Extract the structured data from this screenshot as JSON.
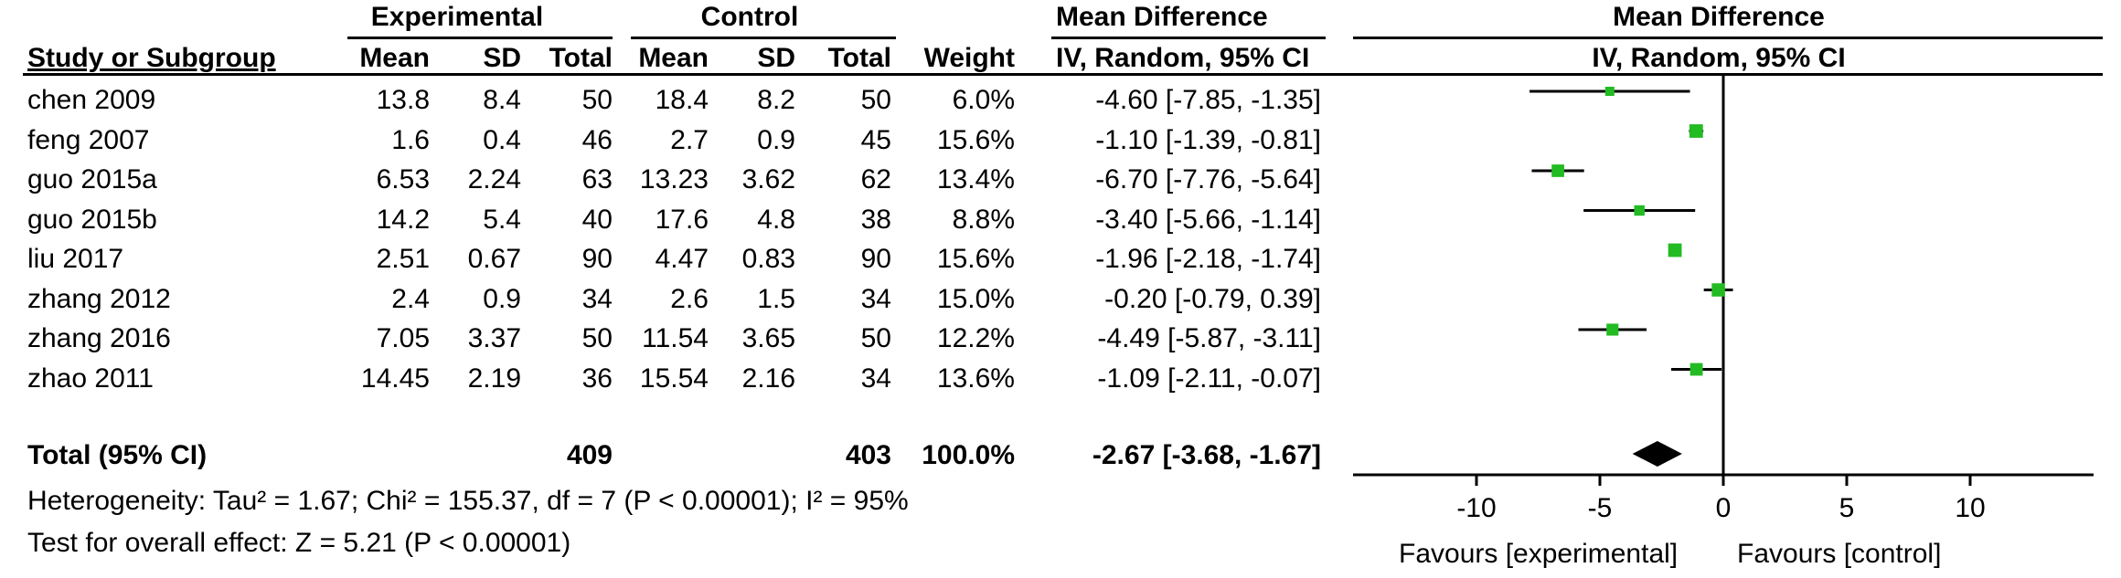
{
  "headers": {
    "experimental": "Experimental",
    "control": "Control",
    "mean_difference": "Mean Difference",
    "study_or_subgroup": "Study or Subgroup",
    "mean": "Mean",
    "sd": "SD",
    "total": "Total",
    "weight": "Weight",
    "method": "IV, Random, 95% CI",
    "plot_title": "Mean Difference",
    "plot_method": "IV, Random, 95% CI"
  },
  "studies": [
    {
      "name": "chen 2009",
      "e_mean": "13.8",
      "e_sd": "8.4",
      "e_total": "50",
      "c_mean": "18.4",
      "c_sd": "8.2",
      "c_total": "50",
      "weight": "6.0%",
      "ci_text": "-4.60 [-7.85, -1.35]"
    },
    {
      "name": "feng 2007",
      "e_mean": "1.6",
      "e_sd": "0.4",
      "e_total": "46",
      "c_mean": "2.7",
      "c_sd": "0.9",
      "c_total": "45",
      "weight": "15.6%",
      "ci_text": "-1.10 [-1.39, -0.81]"
    },
    {
      "name": "guo 2015a",
      "e_mean": "6.53",
      "e_sd": "2.24",
      "e_total": "63",
      "c_mean": "13.23",
      "c_sd": "3.62",
      "c_total": "62",
      "weight": "13.4%",
      "ci_text": "-6.70 [-7.76, -5.64]"
    },
    {
      "name": "guo 2015b",
      "e_mean": "14.2",
      "e_sd": "5.4",
      "e_total": "40",
      "c_mean": "17.6",
      "c_sd": "4.8",
      "c_total": "38",
      "weight": "8.8%",
      "ci_text": "-3.40 [-5.66, -1.14]"
    },
    {
      "name": "liu 2017",
      "e_mean": "2.51",
      "e_sd": "0.67",
      "e_total": "90",
      "c_mean": "4.47",
      "c_sd": "0.83",
      "c_total": "90",
      "weight": "15.6%",
      "ci_text": "-1.96 [-2.18, -1.74]"
    },
    {
      "name": "zhang 2012",
      "e_mean": "2.4",
      "e_sd": "0.9",
      "e_total": "34",
      "c_mean": "2.6",
      "c_sd": "1.5",
      "c_total": "34",
      "weight": "15.0%",
      "ci_text": "-0.20 [-0.79, 0.39]"
    },
    {
      "name": "zhang 2016",
      "e_mean": "7.05",
      "e_sd": "3.37",
      "e_total": "50",
      "c_mean": "11.54",
      "c_sd": "3.65",
      "c_total": "50",
      "weight": "12.2%",
      "ci_text": "-4.49 [-5.87, -3.11]"
    },
    {
      "name": "zhao 2011",
      "e_mean": "14.45",
      "e_sd": "2.19",
      "e_total": "36",
      "c_mean": "15.54",
      "c_sd": "2.16",
      "c_total": "34",
      "weight": "13.6%",
      "ci_text": "-1.09 [-2.11, -0.07]"
    }
  ],
  "total": {
    "label": "Total (95% CI)",
    "e_total": "409",
    "c_total": "403",
    "weight": "100.0%",
    "ci_text": "-2.67 [-3.68, -1.67]"
  },
  "footer": {
    "heterogeneity": "Heterogeneity: Tau² = 1.67; Chi² = 155.37, df = 7 (P < 0.00001); I² = 95%",
    "overall": "Test for overall effect: Z = 5.21 (P < 0.00001)"
  },
  "axis": {
    "favours_left": "Favours [experimental]",
    "favours_right": "Favours [control]"
  },
  "colors": {
    "marker": "#22bb22",
    "ink": "#000000"
  },
  "chart_data": {
    "type": "forest",
    "xlim": [
      -15,
      15
    ],
    "ticks": [
      -10,
      -5,
      0,
      5,
      10
    ],
    "reference_line": 0,
    "studies": [
      {
        "name": "chen 2009",
        "md": -4.6,
        "lo": -7.85,
        "hi": -1.35,
        "weight": 6.0
      },
      {
        "name": "feng 2007",
        "md": -1.1,
        "lo": -1.39,
        "hi": -0.81,
        "weight": 15.6
      },
      {
        "name": "guo 2015a",
        "md": -6.7,
        "lo": -7.76,
        "hi": -5.64,
        "weight": 13.4
      },
      {
        "name": "guo 2015b",
        "md": -3.4,
        "lo": -5.66,
        "hi": -1.14,
        "weight": 8.8
      },
      {
        "name": "liu 2017",
        "md": -1.96,
        "lo": -2.18,
        "hi": -1.74,
        "weight": 15.6
      },
      {
        "name": "zhang 2012",
        "md": -0.2,
        "lo": -0.79,
        "hi": 0.39,
        "weight": 15.0
      },
      {
        "name": "zhang 2016",
        "md": -4.49,
        "lo": -5.87,
        "hi": -3.11,
        "weight": 12.2
      },
      {
        "name": "zhao 2011",
        "md": -1.09,
        "lo": -2.11,
        "hi": -0.07,
        "weight": 13.6
      }
    ],
    "pooled": {
      "md": -2.67,
      "lo": -3.68,
      "hi": -1.67
    }
  }
}
